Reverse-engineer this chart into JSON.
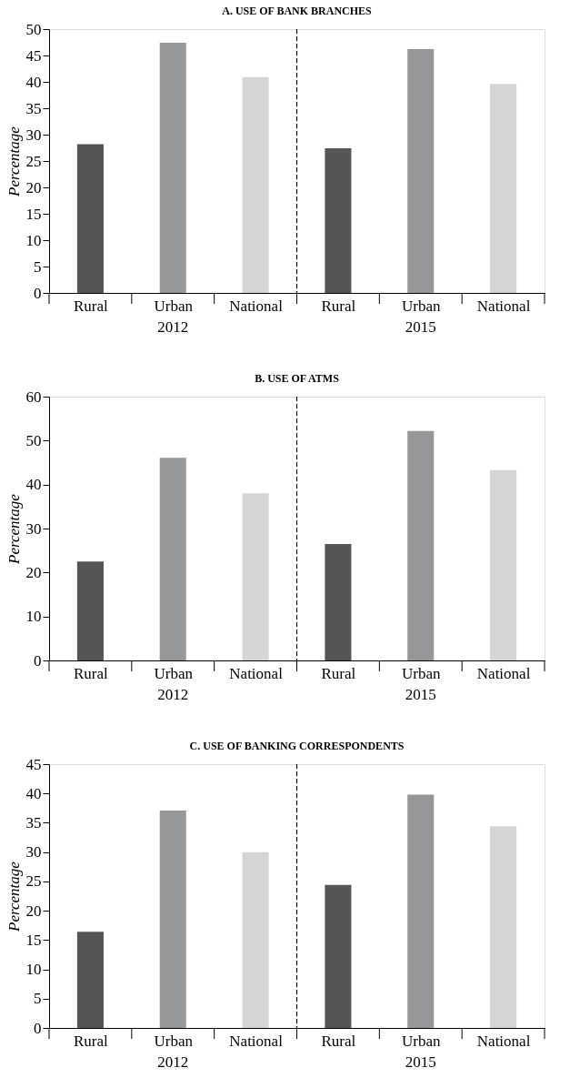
{
  "chart_data": [
    {
      "type": "bar",
      "title": "A. USE OF BANK BRANCHES",
      "ylabel": "Percentage",
      "categories": [
        "Rural",
        "Urban",
        "National",
        "Rural",
        "Urban",
        "National"
      ],
      "values": [
        28.2,
        47.4,
        40.9,
        27.4,
        46.2,
        39.6
      ],
      "colors": [
        "#545554",
        "#969799",
        "#d4d5d4",
        "#545554",
        "#969799",
        "#d4d5d4"
      ],
      "ylim": [
        0,
        50
      ],
      "yticks": [
        0,
        5,
        10,
        15,
        20,
        25,
        30,
        35,
        40,
        45,
        50
      ],
      "annotations": [
        "2012",
        "2015"
      ]
    },
    {
      "type": "bar",
      "title": "B. USE OF ATMS",
      "ylabel": "Percentage",
      "categories": [
        "Rural",
        "Urban",
        "National",
        "Rural",
        "Urban",
        "National"
      ],
      "values": [
        22.5,
        46.1,
        38.0,
        26.5,
        52.2,
        43.3
      ],
      "colors": [
        "#545554",
        "#969799",
        "#d4d5d4",
        "#545554",
        "#969799",
        "#d4d5d4"
      ],
      "ylim": [
        0,
        60
      ],
      "yticks": [
        0,
        10,
        20,
        30,
        40,
        50,
        60
      ],
      "annotations": [
        "2012",
        "2015"
      ]
    },
    {
      "type": "bar",
      "title": "C. USE OF BANKING CORRESPONDENTS",
      "ylabel": "Percentage",
      "categories": [
        "Rural",
        "Urban",
        "National",
        "Rural",
        "Urban",
        "National"
      ],
      "values": [
        16.4,
        37.1,
        30.0,
        24.4,
        39.8,
        34.4
      ],
      "colors": [
        "#545554",
        "#969799",
        "#d4d5d4",
        "#545554",
        "#969799",
        "#d4d5d4"
      ],
      "ylim": [
        0,
        45
      ],
      "yticks": [
        0,
        5,
        10,
        15,
        20,
        25,
        30,
        35,
        40,
        45
      ],
      "annotations": [
        "2012",
        "2015"
      ]
    }
  ]
}
